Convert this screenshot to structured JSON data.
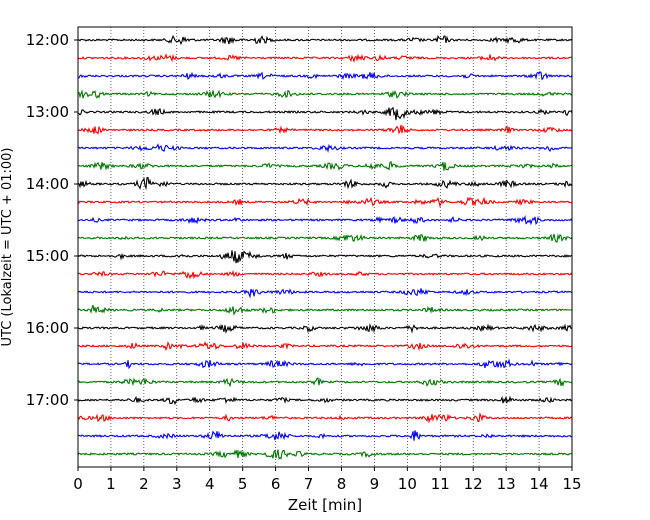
{
  "chart_data": {
    "type": "line",
    "title": "",
    "xlabel": "Zeit  [min]",
    "ylabel": "UTC (Lokalzeit = UTC + 01:00)",
    "xlim": [
      0,
      15
    ],
    "x_ticks": [
      "0",
      "1",
      "2",
      "3",
      "4",
      "5",
      "6",
      "7",
      "8",
      "9",
      "10",
      "11",
      "12",
      "13",
      "14",
      "15"
    ],
    "y_tick_labels": [
      "12:00",
      "13:00",
      "14:00",
      "15:00",
      "16:00",
      "17:00"
    ],
    "grid": "vertical dotted",
    "trace_interval_min": 15,
    "trace_count": 24,
    "trace_start": "12:00",
    "color_cycle": [
      "#000000",
      "#ff0000",
      "#0000ff",
      "#007700"
    ]
  }
}
